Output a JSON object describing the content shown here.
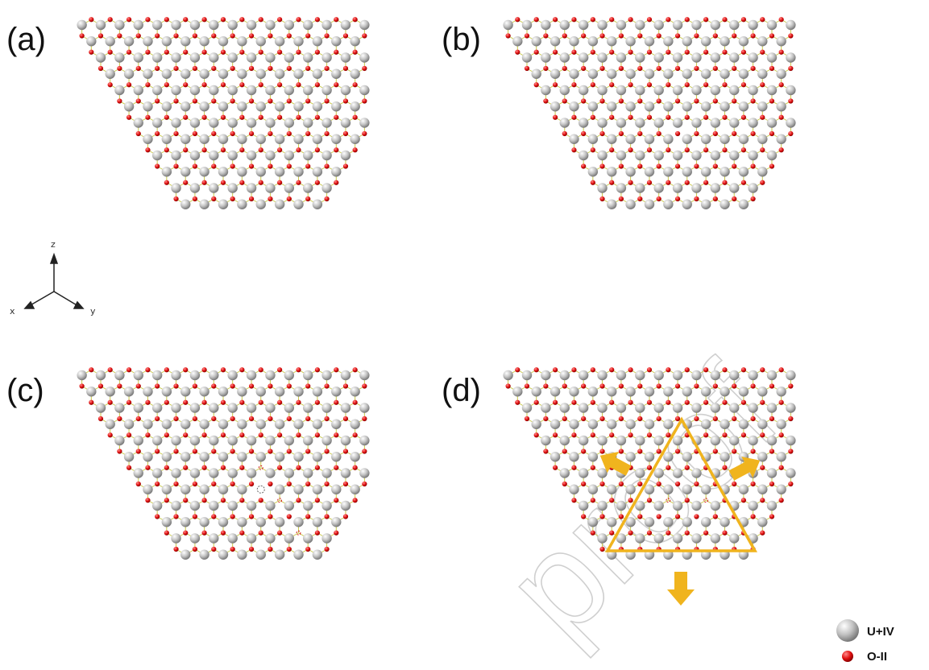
{
  "panels": [
    {
      "label": "(a)",
      "vacancies": "none"
    },
    {
      "label": "(b)",
      "vacancies": "single"
    },
    {
      "label": "(c)",
      "vacancies": "double"
    },
    {
      "label": "(d)",
      "vacancies": "cluster",
      "marker": "triangle-with-outward-arrows"
    }
  ],
  "axes": {
    "z": "z",
    "x": "x",
    "y": "y"
  },
  "legend": [
    {
      "label": "U+IV",
      "symbol": "large-grey-sphere"
    },
    {
      "label": "O-II",
      "symbol": "small-red-sphere"
    }
  ],
  "watermark": "proof",
  "colors": {
    "uranium": "#bdbdbd",
    "oxygen": "#d11212",
    "bond": "#c9c94a",
    "highlight": "#f0b41e"
  }
}
